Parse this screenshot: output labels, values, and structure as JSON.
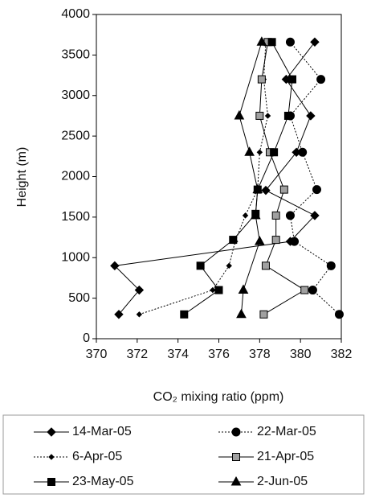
{
  "chart_data": {
    "type": "line",
    "x_label": "CO₂ mixing ratio (ppm)",
    "y_label": "Height (m)",
    "xlim": [
      370,
      382
    ],
    "xticks": [
      370,
      372,
      374,
      376,
      378,
      380,
      382
    ],
    "ylim": [
      0,
      4000
    ],
    "yticks": [
      0,
      500,
      1000,
      1500,
      2000,
      2500,
      3000,
      3500,
      4000
    ],
    "series": [
      {
        "name": "14-Mar-05",
        "color": "#000000",
        "dash": false,
        "marker": "diamond",
        "marker_fill": "#000000",
        "x": [
          371.1,
          372.1,
          370.9,
          379.5,
          380.7,
          378.3,
          379.8,
          380.5,
          379.3,
          380.7
        ],
        "y": [
          300,
          600,
          900,
          1200,
          1520,
          1830,
          2300,
          2750,
          3200,
          3660
        ]
      },
      {
        "name": "22-Mar-05",
        "color": "#000000",
        "dash": true,
        "marker": "circle",
        "marker_fill": "#000000",
        "x": [
          381.9,
          380.6,
          381.5,
          379.7,
          379.5,
          380.8,
          380.1,
          379.5,
          381.0,
          379.5
        ],
        "y": [
          300,
          600,
          900,
          1200,
          1520,
          1840,
          2300,
          2750,
          3200,
          3660
        ]
      },
      {
        "name": "6-Apr-05",
        "color": "#000000",
        "dash": true,
        "marker": "small-diamond",
        "marker_fill": "#000000",
        "x": [
          372.1,
          375.7,
          376.5,
          376.8,
          377.3,
          377.9,
          378.0,
          378.4,
          378.2,
          378.3
        ],
        "y": [
          300,
          600,
          900,
          1200,
          1520,
          1840,
          2300,
          2750,
          3200,
          3660
        ]
      },
      {
        "name": "21-Apr-05",
        "color": "#000000",
        "dash": false,
        "marker": "square",
        "marker_fill": "#a0a0a0",
        "x": [
          378.2,
          380.2,
          378.3,
          378.8,
          378.8,
          379.2,
          378.5,
          378.0,
          378.1,
          378.4
        ],
        "y": [
          300,
          600,
          900,
          1220,
          1520,
          1840,
          2300,
          2750,
          3200,
          3660
        ]
      },
      {
        "name": "23-May-05",
        "color": "#000000",
        "dash": false,
        "marker": "square",
        "marker_fill": "#000000",
        "x": [
          374.3,
          376.0,
          375.1,
          376.7,
          377.8,
          377.9,
          378.7,
          379.4,
          379.6,
          378.6
        ],
        "y": [
          300,
          600,
          900,
          1220,
          1540,
          1840,
          2300,
          2750,
          3200,
          3660
        ]
      },
      {
        "name": "2-Jun-05",
        "color": "#000000",
        "dash": false,
        "marker": "triangle",
        "marker_fill": "#000000",
        "x": [
          377.1,
          377.2,
          378.0,
          377.8,
          377.9,
          377.5,
          377.0,
          378.1
        ],
        "y": [
          300,
          600,
          1200,
          1520,
          1840,
          2300,
          2750,
          3660
        ]
      }
    ]
  }
}
